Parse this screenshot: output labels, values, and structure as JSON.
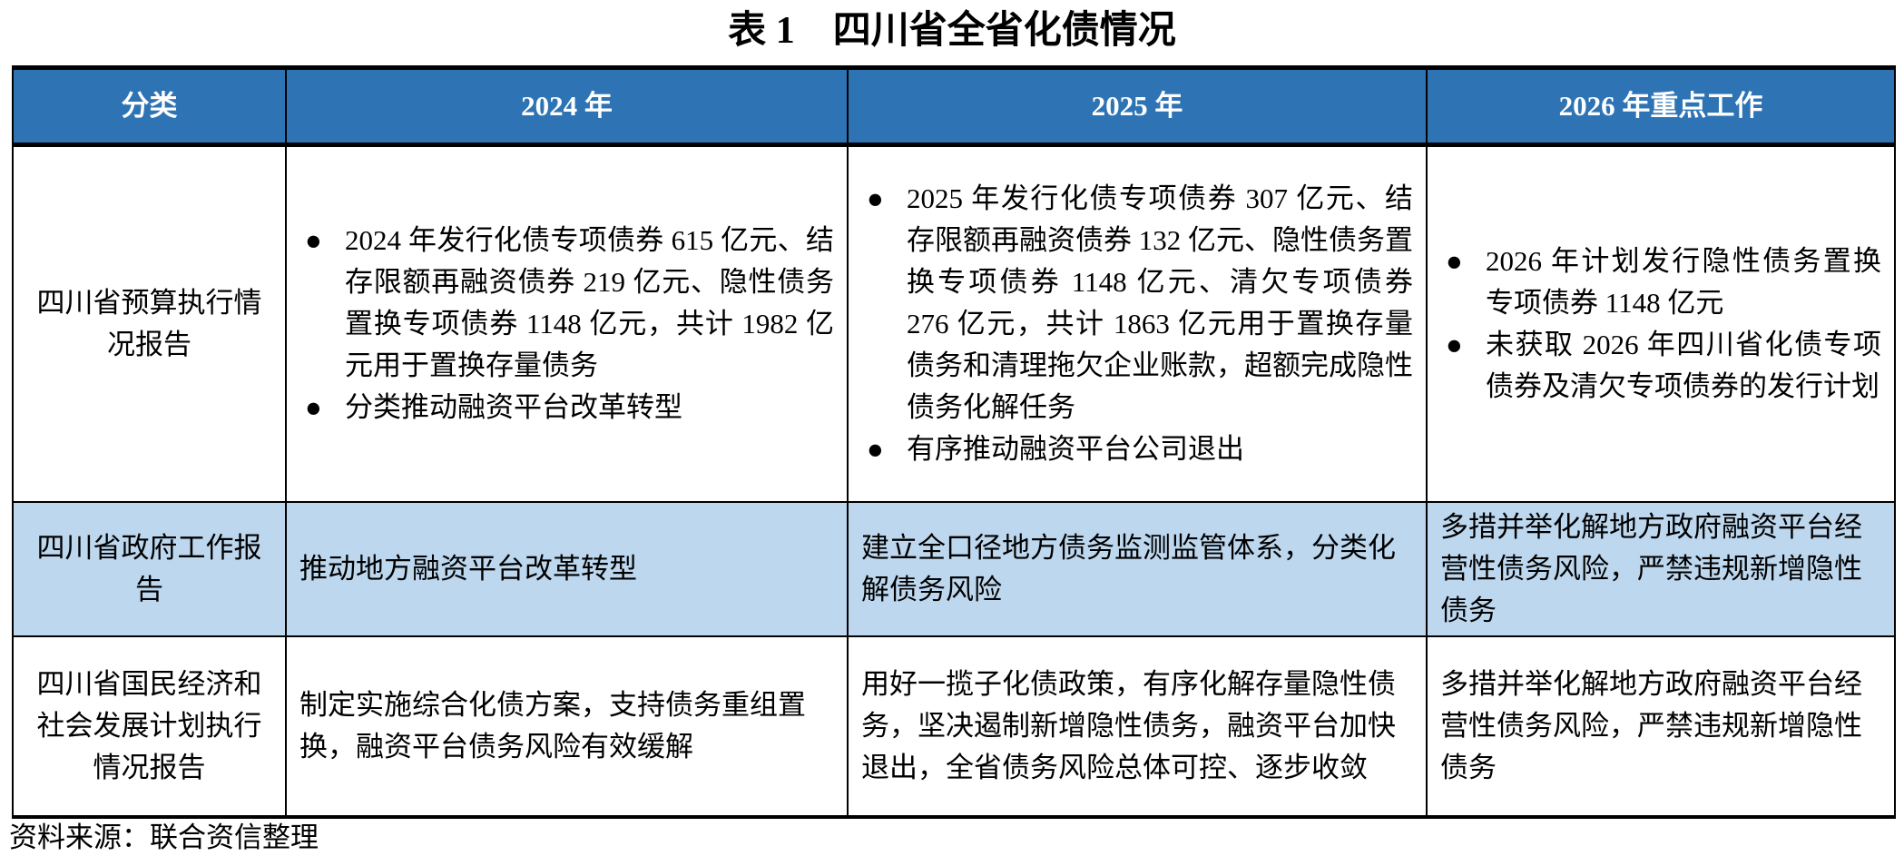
{
  "title": "表 1　四川省全省化债情况",
  "header": [
    "分类",
    "2024 年",
    "2025 年",
    "2026 年重点工作"
  ],
  "rows": [
    {
      "category": "四川省预算执行情况报告",
      "y2024": [
        "2024 年发行化债专项债券 615 亿元、结存限额再融资债券 219 亿元、隐性债务置换专项债券 1148 亿元，共计 1982 亿元用于置换存量债务",
        "分类推动融资平台改革转型"
      ],
      "y2025": [
        "2025 年发行化债专项债券 307 亿元、结存限额再融资债券 132 亿元、隐性债务置换专项债券 1148 亿元、清欠专项债券 276 亿元，共计 1863 亿元用于置换存量债务和清理拖欠企业账款，超额完成隐性债务化解任务",
        "有序推动融资平台公司退出"
      ],
      "y2026": [
        "2026 年计划发行隐性债务置换专项债券 1148 亿元",
        "未获取 2026 年四川省化债专项债券及清欠专项债券的发行计划"
      ]
    },
    {
      "category": "四川省政府工作报告",
      "y2024": "推动地方融资平台改革转型",
      "y2025": "建立全口径地方债务监测监管体系，分类化解债务风险",
      "y2026": "多措并举化解地方政府融资平台经营性债务风险，严禁违规新增隐性债务"
    },
    {
      "category": "四川省国民经济和社会发展计划执行情况报告",
      "y2024": "制定实施综合化债方案，支持债务重组置换，融资平台债务风险有效缓解",
      "y2025": "用好一揽子化债政策，有序化解存量隐性债务，坚决遏制新增隐性债务，融资平台加快退出，全省债务风险总体可控、逐步收敛",
      "y2026": "多措并举化解地方政府融资平台经营性债务风险，严禁违规新增隐性债务"
    }
  ],
  "source": "资料来源：联合资信整理",
  "colors": {
    "header_bg": "#2e74b5",
    "highlight_row_bg": "#bdd7ee"
  }
}
